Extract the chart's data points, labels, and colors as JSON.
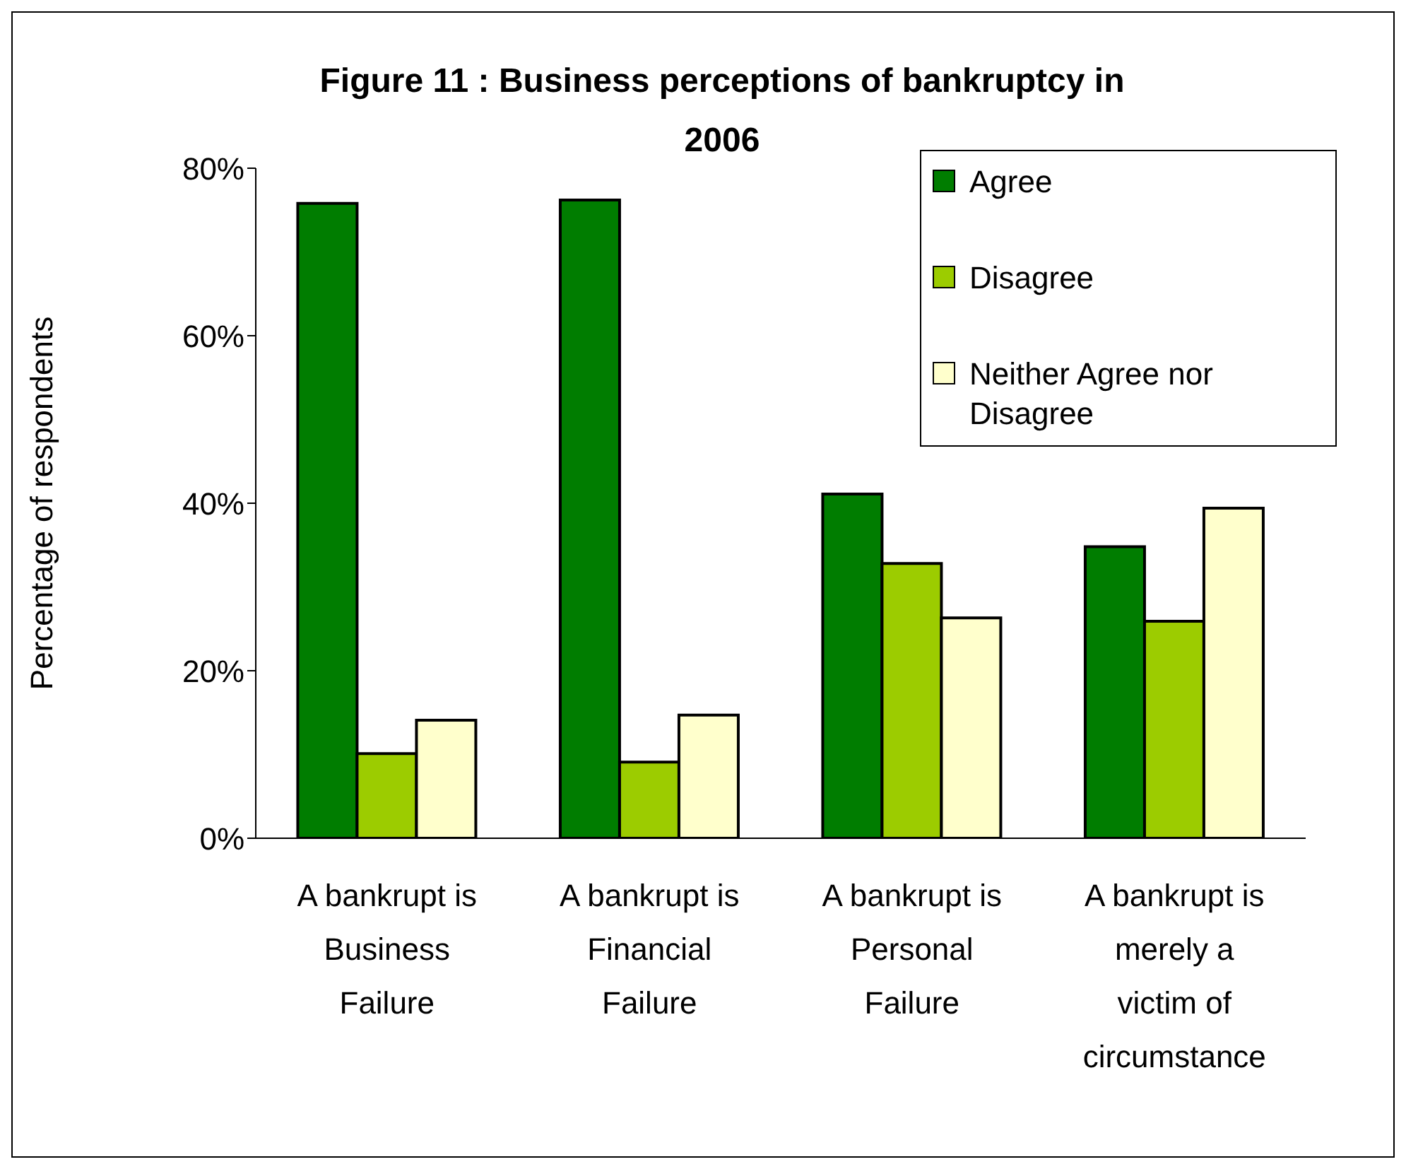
{
  "chart_data": {
    "type": "bar",
    "title": "Figure 11 : Business perceptions of bankruptcy in 2006",
    "ylabel": "Percentage of respondents",
    "categories": [
      "A bankrupt is Business Failure",
      "A bankrupt is Financial Failure",
      "A bankrupt is Personal Failure",
      "A bankrupt is merely a victim of circumstance"
    ],
    "series": [
      {
        "name": "Agree",
        "color": "#007d00",
        "values": [
          75.8,
          76.2,
          41.1,
          34.8
        ]
      },
      {
        "name": "Disagree",
        "color": "#9ccc00",
        "values": [
          10.1,
          9.1,
          32.8,
          25.9
        ]
      },
      {
        "name": "Neither Agree nor Disagree",
        "color": "#ffffcc",
        "values": [
          14.1,
          14.7,
          26.3,
          39.4
        ]
      }
    ],
    "ylim": [
      0,
      80
    ],
    "yticks": [
      {
        "value": 0,
        "label": "0%"
      },
      {
        "value": 20,
        "label": "20%"
      },
      {
        "value": 40,
        "label": "40%"
      },
      {
        "value": 60,
        "label": "60%"
      },
      {
        "value": 80,
        "label": "80%"
      }
    ],
    "grid": false,
    "legend": "top right"
  }
}
